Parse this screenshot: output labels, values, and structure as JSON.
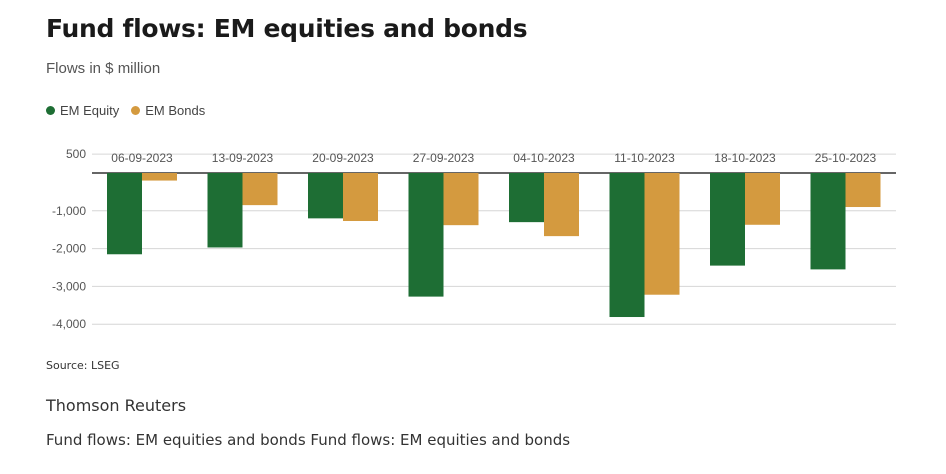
{
  "header": {
    "title": "Fund flows: EM equities and bonds",
    "subtitle": "Flows in $ million"
  },
  "colors": {
    "equity": "#1e6e34",
    "bonds": "#d49a3f",
    "grid": "#d6d6d6",
    "baseline": "#333333"
  },
  "chart_data": {
    "type": "bar",
    "title": "Fund flows: EM equities and bonds",
    "subtitle": "Flows in $ million",
    "categories": [
      "06-09-2023",
      "13-09-2023",
      "20-09-2023",
      "27-09-2023",
      "04-10-2023",
      "11-10-2023",
      "18-10-2023",
      "25-10-2023"
    ],
    "series": [
      {
        "name": "EM Equity",
        "values": [
          -2150,
          -1970,
          -1200,
          -3270,
          -1300,
          -3810,
          -2450,
          -2550
        ]
      },
      {
        "name": "EM Bonds",
        "values": [
          -200,
          -850,
          -1270,
          -1380,
          -1670,
          -3220,
          -1370,
          -900
        ]
      }
    ],
    "yticks": [
      500,
      0,
      -1000,
      -2000,
      -3000,
      -4000
    ],
    "ytick_labels": [
      "500",
      "",
      "-1,000",
      "-2,000",
      "-3,000",
      "-4,000"
    ],
    "ylim": [
      -4000,
      500
    ],
    "legend": "top-left",
    "grid": true,
    "category_labels_position": "top"
  },
  "footer": {
    "source": "Source: LSEG",
    "publisher": "Thomson Reuters",
    "caption": "Fund flows: EM equities and bonds Fund flows: EM equities and bonds"
  }
}
